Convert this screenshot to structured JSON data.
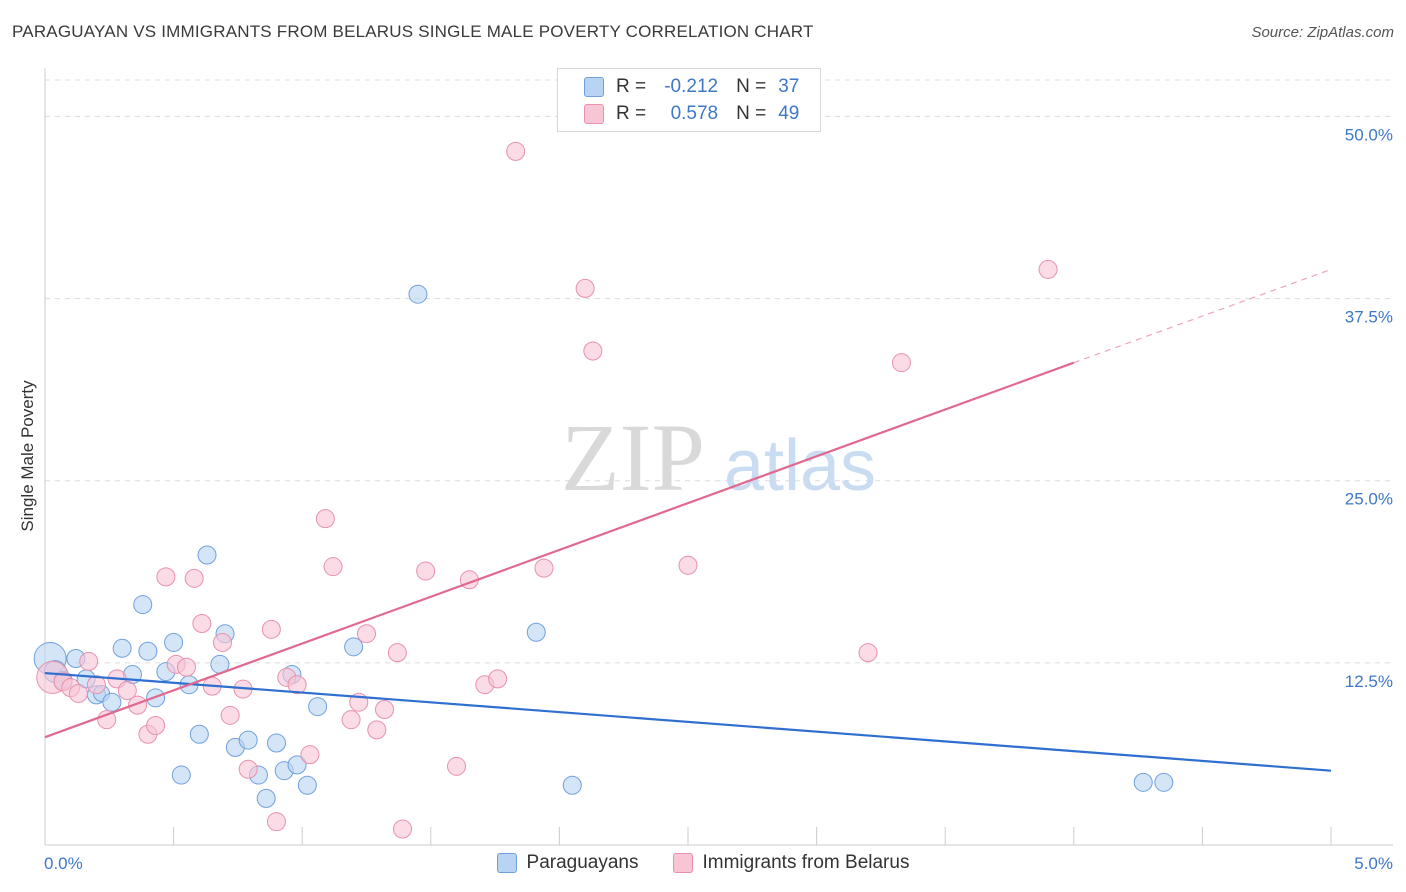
{
  "title": "PARAGUAYAN VS IMMIGRANTS FROM BELARUS SINGLE MALE POVERTY CORRELATION CHART",
  "source": "Source: ZipAtlas.com",
  "watermark": {
    "zip": "ZIP",
    "atlas": "atlas"
  },
  "legend": {
    "rows": [
      {
        "r_label": "R =",
        "r_value": "-0.212",
        "n_label": "N =",
        "n_value": "37"
      },
      {
        "r_label": "R =",
        "r_value": "0.578",
        "n_label": "N =",
        "n_value": "49"
      }
    ]
  },
  "colors": {
    "blue_fill": "#b9d3f3",
    "blue_stroke": "#6fa0dc",
    "blue_line": "#2f6fcf",
    "pink_fill": "#f8c5d5",
    "pink_stroke": "#e890ad",
    "pink_line": "#e0698f",
    "tick_text": "#3e78c6",
    "grid": "#dcdcdc"
  },
  "chart_data": {
    "type": "scatter",
    "title": "PARAGUAYAN VS IMMIGRANTS FROM BELARUS SINGLE MALE POVERTY CORRELATION CHART",
    "xlabel": "",
    "ylabel": "Single Male Poverty",
    "xlim": [
      0,
      5
    ],
    "ylim": [
      0,
      50
    ],
    "x_ticks": [
      "0.0%",
      "5.0%"
    ],
    "y_ticks": [
      "12.5%",
      "25.0%",
      "37.5%",
      "50.0%"
    ],
    "y_tick_values": [
      12.5,
      25,
      37.5,
      50
    ],
    "grid": "horizontal dashed",
    "legend_position": "top-center and bottom",
    "series": [
      {
        "name": "Paraguayans",
        "color": "#6fa0dc",
        "trend": {
          "x": [
            0,
            5
          ],
          "y": [
            11.8,
            5.1
          ]
        },
        "points": [
          [
            0.02,
            12.8,
            16
          ],
          [
            0.04,
            11.9,
            11
          ],
          [
            0.07,
            11.3,
            9
          ],
          [
            0.12,
            12.8,
            9
          ],
          [
            0.16,
            11.4,
            9
          ],
          [
            0.2,
            10.3,
            9
          ],
          [
            0.22,
            10.4,
            8
          ],
          [
            0.26,
            9.8,
            9
          ],
          [
            0.3,
            13.5,
            9
          ],
          [
            0.34,
            11.7,
            9
          ],
          [
            0.38,
            16.5,
            9
          ],
          [
            0.4,
            13.3,
            9
          ],
          [
            0.43,
            10.1,
            9
          ],
          [
            0.47,
            11.9,
            9
          ],
          [
            0.5,
            13.9,
            9
          ],
          [
            0.53,
            4.8,
            9
          ],
          [
            0.56,
            11.0,
            9
          ],
          [
            0.6,
            7.6,
            9
          ],
          [
            0.63,
            19.9,
            9
          ],
          [
            0.68,
            12.4,
            9
          ],
          [
            0.7,
            14.5,
            9
          ],
          [
            0.74,
            6.7,
            9
          ],
          [
            0.79,
            7.2,
            9
          ],
          [
            0.83,
            4.8,
            9
          ],
          [
            0.86,
            3.2,
            9
          ],
          [
            0.9,
            7.0,
            9
          ],
          [
            0.93,
            5.1,
            9
          ],
          [
            0.96,
            11.7,
            9
          ],
          [
            0.98,
            5.5,
            9
          ],
          [
            1.02,
            4.1,
            9
          ],
          [
            1.06,
            9.5,
            9
          ],
          [
            1.2,
            13.6,
            9
          ],
          [
            1.45,
            37.8,
            9
          ],
          [
            1.91,
            14.6,
            9
          ],
          [
            2.05,
            4.1,
            9
          ],
          [
            4.27,
            4.3,
            9
          ],
          [
            4.35,
            4.3,
            9
          ]
        ]
      },
      {
        "name": "Immigrants from Belarus",
        "color": "#e890ad",
        "trend": {
          "x": [
            0,
            4.0
          ],
          "y": [
            7.4,
            33.1
          ]
        },
        "trend_dashed": {
          "x": [
            4.0,
            5
          ],
          "y": [
            33.1,
            39.5
          ]
        },
        "points": [
          [
            0.03,
            11.5,
            16
          ],
          [
            0.07,
            11.2,
            9
          ],
          [
            0.1,
            10.8,
            9
          ],
          [
            0.13,
            10.4,
            9
          ],
          [
            0.17,
            12.6,
            9
          ],
          [
            0.2,
            11.0,
            9
          ],
          [
            0.24,
            8.6,
            9
          ],
          [
            0.28,
            11.4,
            9
          ],
          [
            0.32,
            10.6,
            9
          ],
          [
            0.36,
            9.6,
            9
          ],
          [
            0.4,
            7.6,
            9
          ],
          [
            0.43,
            8.2,
            9
          ],
          [
            0.47,
            18.4,
            9
          ],
          [
            0.51,
            12.4,
            9
          ],
          [
            0.55,
            12.2,
            9
          ],
          [
            0.58,
            18.3,
            9
          ],
          [
            0.61,
            15.2,
            9
          ],
          [
            0.65,
            10.9,
            9
          ],
          [
            0.69,
            13.9,
            9
          ],
          [
            0.72,
            8.9,
            9
          ],
          [
            0.77,
            10.7,
            9
          ],
          [
            0.79,
            5.2,
            9
          ],
          [
            0.88,
            14.8,
            9
          ],
          [
            0.9,
            1.6,
            9
          ],
          [
            0.94,
            11.5,
            9
          ],
          [
            0.98,
            11.0,
            9
          ],
          [
            1.03,
            6.2,
            9
          ],
          [
            1.09,
            22.4,
            9
          ],
          [
            1.12,
            19.1,
            9
          ],
          [
            1.19,
            8.6,
            9
          ],
          [
            1.22,
            9.8,
            9
          ],
          [
            1.25,
            14.5,
            9
          ],
          [
            1.29,
            7.9,
            9
          ],
          [
            1.32,
            9.3,
            9
          ],
          [
            1.37,
            13.2,
            9
          ],
          [
            1.39,
            1.1,
            9
          ],
          [
            1.48,
            18.8,
            9
          ],
          [
            1.6,
            5.4,
            9
          ],
          [
            1.65,
            18.2,
            9
          ],
          [
            1.71,
            11.0,
            9
          ],
          [
            1.76,
            11.4,
            9
          ],
          [
            1.83,
            47.6,
            9
          ],
          [
            1.94,
            19.0,
            9
          ],
          [
            2.1,
            38.2,
            9
          ],
          [
            2.13,
            33.9,
            9
          ],
          [
            2.5,
            19.2,
            9
          ],
          [
            3.2,
            13.2,
            9
          ],
          [
            3.33,
            33.1,
            9
          ],
          [
            3.9,
            39.5,
            9
          ]
        ]
      }
    ]
  },
  "bottom_legend": [
    {
      "label": "Paraguayans"
    },
    {
      "label": "Immigrants from Belarus"
    }
  ]
}
